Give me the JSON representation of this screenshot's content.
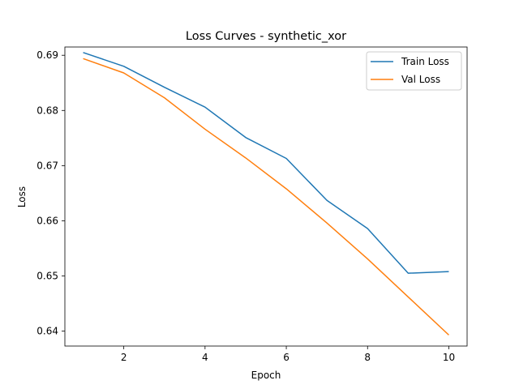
{
  "chart_data": {
    "type": "line",
    "title": "Loss Curves - synthetic_xor",
    "xlabel": "Epoch",
    "ylabel": "Loss",
    "xlim": [
      0.55,
      10.45
    ],
    "ylim": [
      0.6373,
      0.6915
    ],
    "xticks": [
      2,
      4,
      6,
      8,
      10
    ],
    "yticks": [
      0.64,
      0.65,
      0.66,
      0.67,
      0.68,
      0.69
    ],
    "x": [
      1,
      2,
      3,
      4,
      5,
      6,
      7,
      8,
      9,
      10
    ],
    "series": [
      {
        "name": "Train Loss",
        "color": "#1f77b4",
        "values": [
          0.6905,
          0.688,
          0.6842,
          0.6806,
          0.6751,
          0.6713,
          0.6637,
          0.6586,
          0.6505,
          0.6508
        ]
      },
      {
        "name": "Val Loss",
        "color": "#ff7f0e",
        "values": [
          0.6894,
          0.6868,
          0.6823,
          0.6766,
          0.6714,
          0.6658,
          0.6596,
          0.6531,
          0.6462,
          0.6393
        ]
      }
    ],
    "grid": false,
    "legend": "top-right"
  }
}
